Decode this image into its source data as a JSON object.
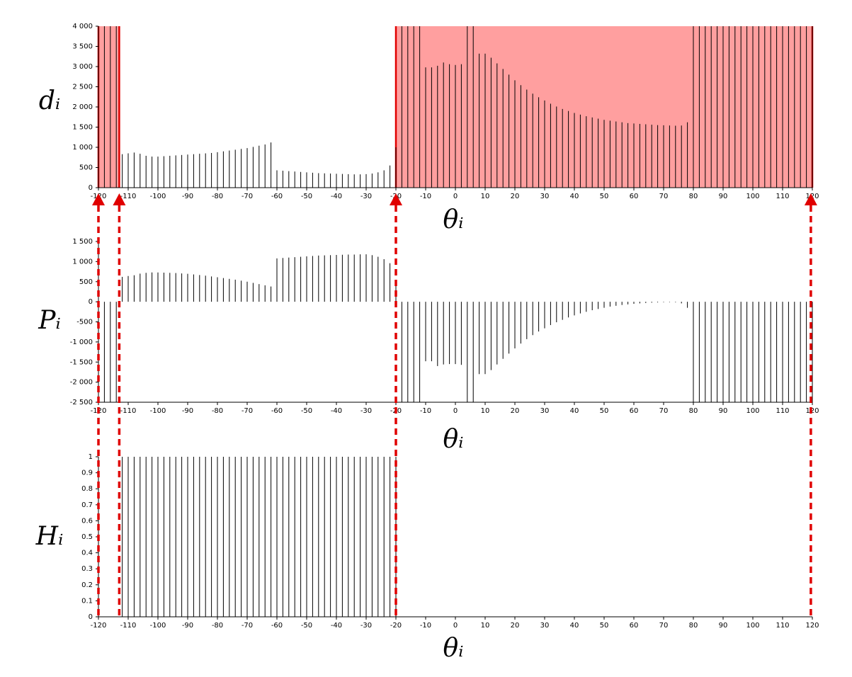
{
  "chart_data": [
    {
      "type": "stem",
      "ylabel": "dᵢ",
      "xlabel": "θᵢ",
      "color": "#000000",
      "x": [
        -120,
        -118,
        -116,
        -114,
        -112,
        -110,
        -108,
        -106,
        -104,
        -102,
        -100,
        -98,
        -96,
        -94,
        -92,
        -90,
        -88,
        -86,
        -84,
        -82,
        -80,
        -78,
        -76,
        -74,
        -72,
        -70,
        -68,
        -66,
        -64,
        -62,
        -60,
        -58,
        -56,
        -54,
        -52,
        -50,
        -48,
        -46,
        -44,
        -42,
        -40,
        -38,
        -36,
        -34,
        -32,
        -30,
        -28,
        -26,
        -24,
        -22,
        -20,
        -18,
        -16,
        -14,
        -12,
        -10,
        -8,
        -6,
        -4,
        -2,
        0,
        2,
        4,
        6,
        8,
        10,
        12,
        14,
        16,
        18,
        20,
        22,
        24,
        26,
        28,
        30,
        32,
        34,
        36,
        38,
        40,
        42,
        44,
        46,
        48,
        50,
        52,
        54,
        56,
        58,
        60,
        62,
        64,
        66,
        68,
        70,
        72,
        74,
        76,
        78,
        80,
        82,
        84,
        86,
        88,
        90,
        92,
        94,
        96,
        98,
        100,
        102,
        104,
        106,
        108,
        110,
        112,
        114,
        116,
        118,
        120
      ],
      "values": [
        4000,
        4000,
        4000,
        4000,
        830,
        850,
        870,
        840,
        790,
        770,
        770,
        780,
        790,
        800,
        810,
        820,
        830,
        840,
        850,
        860,
        880,
        900,
        920,
        940,
        960,
        980,
        1010,
        1040,
        1070,
        1120,
        430,
        420,
        410,
        400,
        390,
        380,
        370,
        360,
        355,
        350,
        345,
        340,
        335,
        330,
        330,
        335,
        350,
        380,
        430,
        550,
        1000,
        4000,
        4000,
        4000,
        4000,
        2980,
        2980,
        3020,
        3100,
        3060,
        3040,
        3060,
        4000,
        4000,
        3320,
        3320,
        3220,
        3080,
        2940,
        2800,
        2660,
        2540,
        2430,
        2330,
        2240,
        2160,
        2080,
        2010,
        1950,
        1900,
        1850,
        1810,
        1770,
        1740,
        1710,
        1680,
        1660,
        1640,
        1620,
        1600,
        1590,
        1580,
        1570,
        1560,
        1550,
        1545,
        1540,
        1535,
        1540,
        1620,
        4000,
        4000,
        4000,
        4000,
        4000,
        4000,
        4000,
        4000,
        4000,
        4000,
        4000,
        4000,
        4000,
        4000,
        4000,
        4000,
        4000,
        4000,
        4000,
        4000,
        4000
      ],
      "xlim": [
        -120,
        120
      ],
      "xticks": [
        -120,
        -110,
        -100,
        -90,
        -80,
        -70,
        -60,
        -50,
        -40,
        -30,
        -20,
        -10,
        0,
        10,
        20,
        30,
        40,
        50,
        60,
        70,
        80,
        90,
        100,
        110,
        120
      ],
      "ylim": [
        0,
        4000
      ],
      "yticks": [
        0,
        500,
        {
          "value": 1000,
          "label": "1 000"
        },
        {
          "value": 1500,
          "label": "1 500"
        },
        {
          "value": 2000,
          "label": "2 000"
        },
        {
          "value": 2500,
          "label": "2 500"
        },
        {
          "value": 3000,
          "label": "3 000"
        },
        {
          "value": 3500,
          "label": "3 500"
        },
        {
          "value": 4000,
          "label": "4 000"
        }
      ],
      "regions": [
        [
          -120,
          -113
        ],
        [
          -20,
          120
        ]
      ],
      "region_color": "#ff9f9f",
      "region_edge_color": "#e00000"
    },
    {
      "type": "stem",
      "ylabel": "Pᵢ",
      "xlabel": "θᵢ",
      "color": "#000000",
      "x": [
        -120,
        -118,
        -116,
        -114,
        -112,
        -110,
        -108,
        -106,
        -104,
        -102,
        -100,
        -98,
        -96,
        -94,
        -92,
        -90,
        -88,
        -86,
        -84,
        -82,
        -80,
        -78,
        -76,
        -74,
        -72,
        -70,
        -68,
        -66,
        -64,
        -62,
        -60,
        -58,
        -56,
        -54,
        -52,
        -50,
        -48,
        -46,
        -44,
        -42,
        -40,
        -38,
        -36,
        -34,
        -32,
        -30,
        -28,
        -26,
        -24,
        -22,
        -20,
        -18,
        -16,
        -14,
        -12,
        -10,
        -8,
        -6,
        -4,
        -2,
        0,
        2,
        4,
        6,
        8,
        10,
        12,
        14,
        16,
        18,
        20,
        22,
        24,
        26,
        28,
        30,
        32,
        34,
        36,
        38,
        40,
        42,
        44,
        46,
        48,
        50,
        52,
        54,
        56,
        58,
        60,
        62,
        64,
        66,
        68,
        70,
        72,
        74,
        76,
        78,
        80,
        82,
        84,
        86,
        88,
        90,
        92,
        94,
        96,
        98,
        100,
        102,
        104,
        106,
        108,
        110,
        112,
        114,
        116,
        118,
        120
      ],
      "values": [
        -2500,
        -2500,
        -2500,
        -2500,
        620,
        640,
        660,
        700,
        720,
        730,
        730,
        725,
        720,
        715,
        705,
        695,
        680,
        665,
        650,
        630,
        610,
        590,
        570,
        550,
        525,
        500,
        470,
        440,
        410,
        380,
        1080,
        1090,
        1100,
        1110,
        1120,
        1130,
        1140,
        1150,
        1155,
        1160,
        1165,
        1170,
        1175,
        1175,
        1180,
        1180,
        1160,
        1120,
        1060,
        960,
        500,
        -2500,
        -2500,
        -2500,
        -2500,
        -1480,
        -1480,
        -1600,
        -1560,
        -1550,
        -1550,
        -1570,
        -2500,
        -2500,
        -1800,
        -1800,
        -1700,
        -1560,
        -1420,
        -1290,
        -1160,
        -1040,
        -930,
        -830,
        -740,
        -660,
        -580,
        -510,
        -450,
        -390,
        -340,
        -290,
        -250,
        -210,
        -180,
        -150,
        -120,
        -100,
        -80,
        -65,
        -50,
        -40,
        -30,
        -22,
        -16,
        -12,
        -10,
        -12,
        -40,
        -150,
        -2500,
        -2500,
        -2500,
        -2500,
        -2500,
        -2500,
        -2500,
        -2500,
        -2500,
        -2500,
        -2500,
        -2500,
        -2500,
        -2500,
        -2500,
        -2500,
        -2500,
        -2500,
        -2500,
        -2500,
        -2500
      ],
      "xlim": [
        -120,
        120
      ],
      "xticks": [
        -120,
        -110,
        -100,
        -90,
        -80,
        -70,
        -60,
        -50,
        -40,
        -30,
        -20,
        -10,
        0,
        10,
        20,
        30,
        40,
        50,
        60,
        70,
        80,
        90,
        100,
        110,
        120
      ],
      "ylim": [
        -2500,
        1500
      ],
      "yticks": [
        {
          "value": -2500,
          "label": "-2 500"
        },
        {
          "value": -2000,
          "label": "-2 000"
        },
        {
          "value": -1500,
          "label": "-1 500"
        },
        {
          "value": -1000,
          "label": "-1 000"
        },
        -500,
        0,
        500,
        {
          "value": 1000,
          "label": "1 000"
        },
        {
          "value": 1500,
          "label": "1 500"
        }
      ]
    },
    {
      "type": "stem",
      "ylabel": "Hᵢ",
      "xlabel": "θᵢ",
      "color": "#000000",
      "x": [
        -120,
        -118,
        -116,
        -114,
        -112,
        -110,
        -108,
        -106,
        -104,
        -102,
        -100,
        -98,
        -96,
        -94,
        -92,
        -90,
        -88,
        -86,
        -84,
        -82,
        -80,
        -78,
        -76,
        -74,
        -72,
        -70,
        -68,
        -66,
        -64,
        -62,
        -60,
        -58,
        -56,
        -54,
        -52,
        -50,
        -48,
        -46,
        -44,
        -42,
        -40,
        -38,
        -36,
        -34,
        -32,
        -30,
        -28,
        -26,
        -24,
        -22,
        -20,
        -18,
        -16,
        -14,
        -12,
        -10,
        -8,
        -6,
        -4,
        -2,
        0,
        2,
        4,
        6,
        8,
        10,
        12,
        14,
        16,
        18,
        20,
        22,
        24,
        26,
        28,
        30,
        32,
        34,
        36,
        38,
        40,
        42,
        44,
        46,
        48,
        50,
        52,
        54,
        56,
        58,
        60,
        62,
        64,
        66,
        68,
        70,
        72,
        74,
        76,
        78,
        80,
        82,
        84,
        86,
        88,
        90,
        92,
        94,
        96,
        98,
        100,
        102,
        104,
        106,
        108,
        110,
        112,
        114,
        116,
        118,
        120
      ],
      "values": [
        0,
        0,
        0,
        0,
        1,
        1,
        1,
        1,
        1,
        1,
        1,
        1,
        1,
        1,
        1,
        1,
        1,
        1,
        1,
        1,
        1,
        1,
        1,
        1,
        1,
        1,
        1,
        1,
        1,
        1,
        1,
        1,
        1,
        1,
        1,
        1,
        1,
        1,
        1,
        1,
        1,
        1,
        1,
        1,
        1,
        1,
        1,
        1,
        1,
        1,
        1,
        0,
        0,
        0,
        0,
        0,
        0,
        0,
        0,
        0,
        0,
        0,
        0,
        0,
        0,
        0,
        0,
        0,
        0,
        0,
        0,
        0,
        0,
        0,
        0,
        0,
        0,
        0,
        0,
        0,
        0,
        0,
        0,
        0,
        0,
        0,
        0,
        0,
        0,
        0,
        0,
        0,
        0,
        0,
        0,
        0,
        0,
        0,
        0,
        0,
        0,
        0,
        0,
        0,
        0,
        0,
        0,
        0,
        0,
        0,
        0,
        0,
        0,
        0,
        0,
        0,
        0,
        0,
        0,
        0,
        0
      ],
      "xlim": [
        -120,
        120
      ],
      "xticks": [
        -120,
        -110,
        -100,
        -90,
        -80,
        -70,
        -60,
        -50,
        -40,
        -30,
        -20,
        -10,
        0,
        10,
        20,
        30,
        40,
        50,
        60,
        70,
        80,
        90,
        100,
        110,
        120
      ],
      "ylim": [
        0,
        1
      ],
      "yticks": [
        0,
        0.1,
        0.2,
        0.3,
        0.4,
        0.5,
        0.6,
        0.7,
        0.8,
        0.9,
        1
      ]
    }
  ],
  "markers": {
    "x": [
      -120,
      -113,
      -20,
      119.5
    ],
    "color": "#e00000"
  }
}
